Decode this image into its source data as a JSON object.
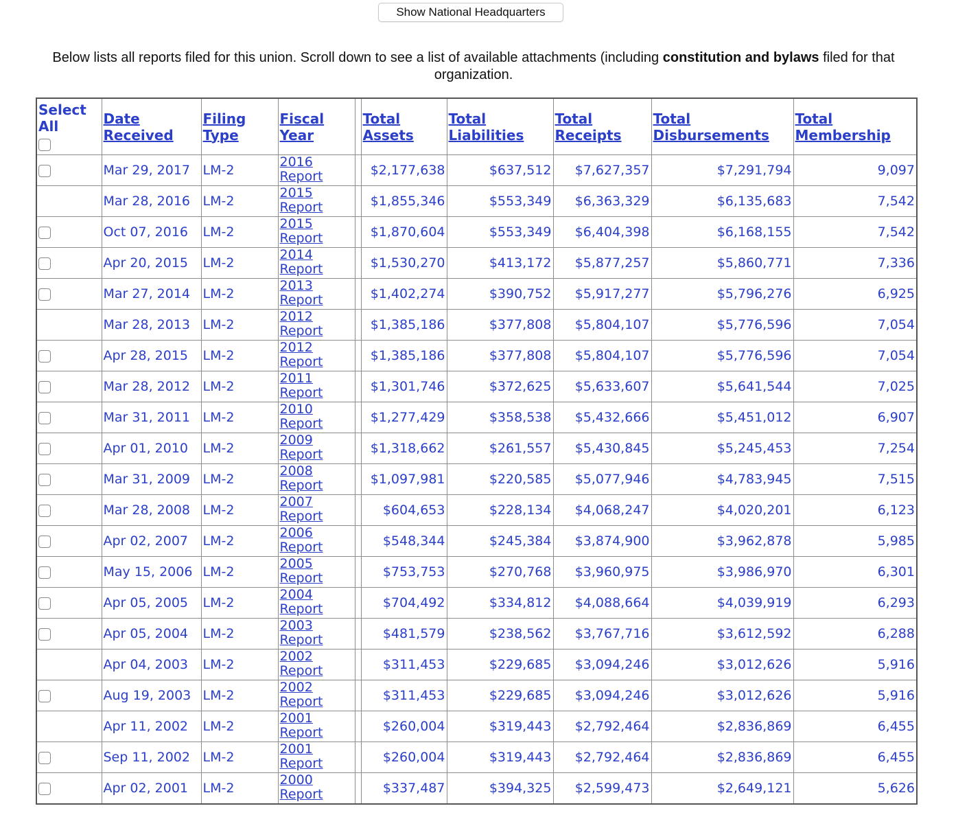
{
  "header_button": {
    "label": "Show National Headquarters"
  },
  "intro": {
    "part1": "Below lists all reports filed for this union. Scroll down to see a list of available attachments (including ",
    "bold": "constitution and bylaws",
    "part2": " filed for that organization."
  },
  "table": {
    "columns": {
      "select_line1": "Select",
      "select_line2": "All",
      "date": "Date Received",
      "filing": "Filing Type",
      "fiscal": "Fiscal Year",
      "assets": "Total Assets",
      "liabilities": "Total Liabilities",
      "receipts": "Total Receipts",
      "disbursements": "Total Disbursements",
      "membership": "Total Membership"
    },
    "rows": [
      {
        "checkbox": true,
        "date": "Mar 29, 2017",
        "type": "LM-2",
        "year": "2016",
        "report": "Report",
        "assets": "$2,177,638",
        "liabilities": "$637,512",
        "receipts": "$7,627,357",
        "disbursements": "$7,291,794",
        "membership": "9,097"
      },
      {
        "checkbox": false,
        "date": "Mar 28, 2016",
        "type": "LM-2",
        "year": "2015",
        "report": "Report",
        "assets": "$1,855,346",
        "liabilities": "$553,349",
        "receipts": "$6,363,329",
        "disbursements": "$6,135,683",
        "membership": "7,542"
      },
      {
        "checkbox": true,
        "date": "Oct 07, 2016",
        "type": "LM-2",
        "year": "2015",
        "report": "Report",
        "assets": "$1,870,604",
        "liabilities": "$553,349",
        "receipts": "$6,404,398",
        "disbursements": "$6,168,155",
        "membership": "7,542"
      },
      {
        "checkbox": true,
        "date": "Apr 20, 2015",
        "type": "LM-2",
        "year": "2014",
        "report": "Report",
        "assets": "$1,530,270",
        "liabilities": "$413,172",
        "receipts": "$5,877,257",
        "disbursements": "$5,860,771",
        "membership": "7,336"
      },
      {
        "checkbox": true,
        "date": "Mar 27, 2014",
        "type": "LM-2",
        "year": "2013",
        "report": "Report",
        "assets": "$1,402,274",
        "liabilities": "$390,752",
        "receipts": "$5,917,277",
        "disbursements": "$5,796,276",
        "membership": "6,925"
      },
      {
        "checkbox": false,
        "date": "Mar 28, 2013",
        "type": "LM-2",
        "year": "2012",
        "report": "Report",
        "assets": "$1,385,186",
        "liabilities": "$377,808",
        "receipts": "$5,804,107",
        "disbursements": "$5,776,596",
        "membership": "7,054"
      },
      {
        "checkbox": true,
        "date": "Apr 28, 2015",
        "type": "LM-2",
        "year": "2012",
        "report": "Report",
        "assets": "$1,385,186",
        "liabilities": "$377,808",
        "receipts": "$5,804,107",
        "disbursements": "$5,776,596",
        "membership": "7,054"
      },
      {
        "checkbox": true,
        "date": "Mar 28, 2012",
        "type": "LM-2",
        "year": "2011",
        "report": "Report",
        "assets": "$1,301,746",
        "liabilities": "$372,625",
        "receipts": "$5,633,607",
        "disbursements": "$5,641,544",
        "membership": "7,025"
      },
      {
        "checkbox": true,
        "date": "Mar 31, 2011",
        "type": "LM-2",
        "year": "2010",
        "report": "Report",
        "assets": "$1,277,429",
        "liabilities": "$358,538",
        "receipts": "$5,432,666",
        "disbursements": "$5,451,012",
        "membership": "6,907"
      },
      {
        "checkbox": true,
        "date": "Apr 01, 2010",
        "type": "LM-2",
        "year": "2009",
        "report": "Report",
        "assets": "$1,318,662",
        "liabilities": "$261,557",
        "receipts": "$5,430,845",
        "disbursements": "$5,245,453",
        "membership": "7,254"
      },
      {
        "checkbox": true,
        "date": "Mar 31, 2009",
        "type": "LM-2",
        "year": "2008",
        "report": "Report",
        "assets": "$1,097,981",
        "liabilities": "$220,585",
        "receipts": "$5,077,946",
        "disbursements": "$4,783,945",
        "membership": "7,515"
      },
      {
        "checkbox": true,
        "date": "Mar 28, 2008",
        "type": "LM-2",
        "year": "2007",
        "report": "Report",
        "assets": "$604,653",
        "liabilities": "$228,134",
        "receipts": "$4,068,247",
        "disbursements": "$4,020,201",
        "membership": "6,123"
      },
      {
        "checkbox": true,
        "date": "Apr 02, 2007",
        "type": "LM-2",
        "year": "2006",
        "report": "Report",
        "assets": "$548,344",
        "liabilities": "$245,384",
        "receipts": "$3,874,900",
        "disbursements": "$3,962,878",
        "membership": "5,985"
      },
      {
        "checkbox": true,
        "date": "May 15, 2006",
        "type": "LM-2",
        "year": "2005",
        "report": "Report",
        "assets": "$753,753",
        "liabilities": "$270,768",
        "receipts": "$3,960,975",
        "disbursements": "$3,986,970",
        "membership": "6,301"
      },
      {
        "checkbox": true,
        "date": "Apr 05, 2005",
        "type": "LM-2",
        "year": "2004",
        "report": "Report",
        "assets": "$704,492",
        "liabilities": "$334,812",
        "receipts": "$4,088,664",
        "disbursements": "$4,039,919",
        "membership": "6,293"
      },
      {
        "checkbox": true,
        "date": "Apr 05, 2004",
        "type": "LM-2",
        "year": "2003",
        "report": "Report",
        "assets": "$481,579",
        "liabilities": "$238,562",
        "receipts": "$3,767,716",
        "disbursements": "$3,612,592",
        "membership": "6,288"
      },
      {
        "checkbox": false,
        "date": "Apr 04, 2003",
        "type": "LM-2",
        "year": "2002",
        "report": "Report",
        "assets": "$311,453",
        "liabilities": "$229,685",
        "receipts": "$3,094,246",
        "disbursements": "$3,012,626",
        "membership": "5,916"
      },
      {
        "checkbox": true,
        "date": "Aug 19, 2003",
        "type": "LM-2",
        "year": "2002",
        "report": "Report",
        "assets": "$311,453",
        "liabilities": "$229,685",
        "receipts": "$3,094,246",
        "disbursements": "$3,012,626",
        "membership": "5,916"
      },
      {
        "checkbox": false,
        "date": "Apr 11, 2002",
        "type": "LM-2",
        "year": "2001",
        "report": "Report",
        "assets": "$260,004",
        "liabilities": "$319,443",
        "receipts": "$2,792,464",
        "disbursements": "$2,836,869",
        "membership": "6,455"
      },
      {
        "checkbox": true,
        "date": "Sep 11, 2002",
        "type": "LM-2",
        "year": "2001",
        "report": "Report",
        "assets": "$260,004",
        "liabilities": "$319,443",
        "receipts": "$2,792,464",
        "disbursements": "$2,836,869",
        "membership": "6,455"
      },
      {
        "checkbox": true,
        "date": "Apr 02, 2001",
        "type": "LM-2",
        "year": "2000",
        "report": "Report",
        "assets": "$337,487",
        "liabilities": "$394,325",
        "receipts": "$2,599,473",
        "disbursements": "$2,649,121",
        "membership": "5,626"
      }
    ]
  }
}
